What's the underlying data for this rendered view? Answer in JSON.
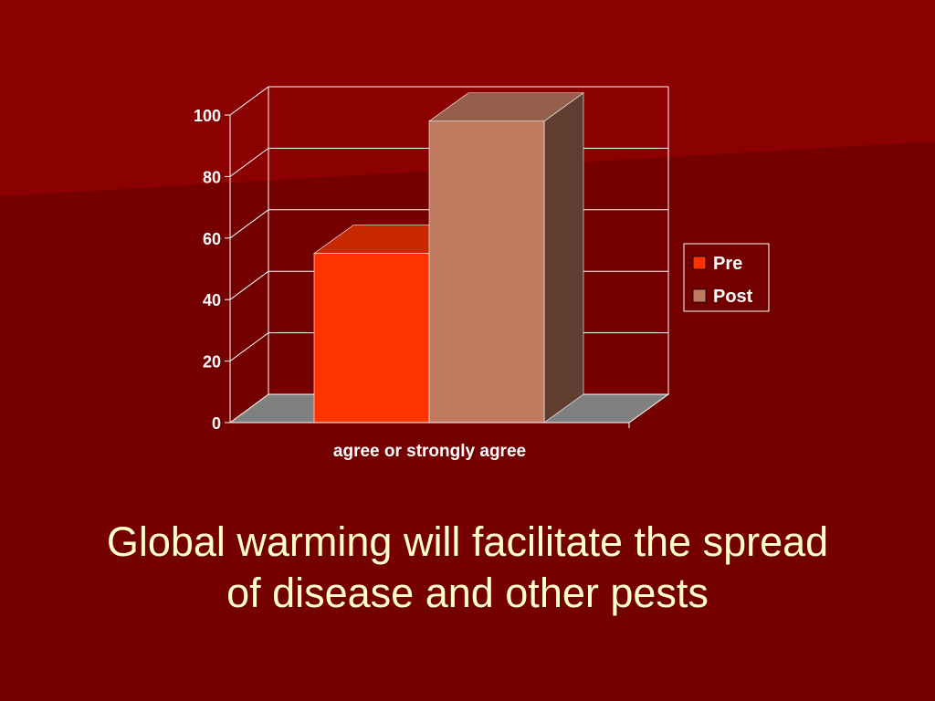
{
  "slide": {
    "title_line1": "Global warming will facilitate the spread",
    "title_line2": "of disease and other pests"
  },
  "colors": {
    "background": "#750000",
    "background_top": "#8b0000",
    "title_text": "#ffffcc",
    "pre_fill": "#ff3300",
    "post_fill": "#bf7a60",
    "floor": "#808080",
    "grid": "#ffffff"
  },
  "chart_data": {
    "type": "bar",
    "style": "3d-clustered-column",
    "categories": [
      "agree or strongly agree"
    ],
    "series": [
      {
        "name": "Pre",
        "values": [
          55
        ],
        "color": "#ff3300"
      },
      {
        "name": "Post",
        "values": [
          98
        ],
        "color": "#bf7a60"
      }
    ],
    "yticks": [
      0,
      20,
      40,
      60,
      80,
      100
    ],
    "ylim": [
      0,
      100
    ],
    "grid": true,
    "legend": "right"
  }
}
